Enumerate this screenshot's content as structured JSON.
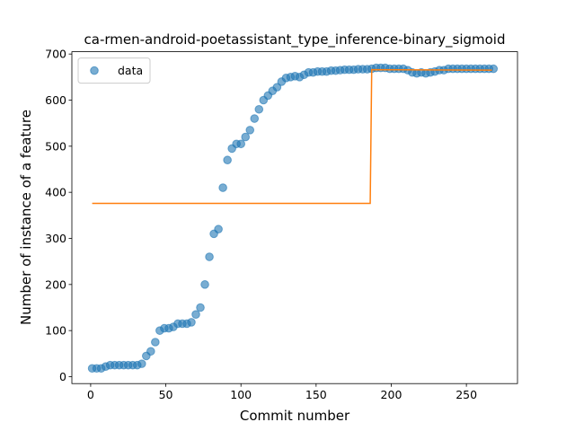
{
  "chart_data": {
    "type": "scatter",
    "title": "ca-rmen-android-poetassistant_type_inference-binary_sigmoid",
    "x_label": "Commit number",
    "y_label": "Number of instance of a feature",
    "xlim": [
      -12.5,
      284
    ],
    "ylim": [
      -15,
      705
    ],
    "xticks": [
      0,
      50,
      100,
      150,
      200,
      250
    ],
    "yticks": [
      0,
      100,
      200,
      300,
      400,
      500,
      600,
      700
    ],
    "legend": "upper left",
    "series": [
      {
        "name": "data",
        "color": "#1f77b4",
        "kind": "scatter",
        "x": [
          1,
          4,
          7,
          10,
          13,
          16,
          19,
          22,
          25,
          28,
          31,
          34,
          37,
          40,
          43,
          46,
          49,
          52,
          55,
          58,
          61,
          64,
          67,
          70,
          73,
          76,
          79,
          82,
          85,
          88,
          91,
          94,
          97,
          100,
          103,
          106,
          109,
          112,
          115,
          118,
          121,
          124,
          127,
          130,
          133,
          136,
          139,
          142,
          145,
          148,
          151,
          154,
          157,
          160,
          163,
          166,
          169,
          172,
          175,
          178,
          181,
          184,
          187,
          190,
          193,
          196,
          199,
          202,
          205,
          208,
          211,
          214,
          217,
          220,
          223,
          226,
          229,
          232,
          235,
          238,
          241,
          244,
          247,
          250,
          253,
          256,
          259,
          262,
          265,
          268
        ],
        "values": [
          18,
          18,
          18,
          22,
          25,
          25,
          25,
          25,
          25,
          25,
          25,
          28,
          45,
          55,
          75,
          100,
          105,
          105,
          108,
          115,
          115,
          115,
          118,
          135,
          150,
          200,
          260,
          310,
          320,
          410,
          470,
          495,
          505,
          505,
          520,
          535,
          560,
          580,
          600,
          610,
          620,
          628,
          640,
          648,
          650,
          652,
          650,
          655,
          660,
          660,
          662,
          662,
          662,
          664,
          664,
          665,
          666,
          666,
          666,
          667,
          667,
          667,
          668,
          670,
          670,
          670,
          668,
          668,
          668,
          668,
          665,
          660,
          658,
          660,
          658,
          660,
          662,
          665,
          665,
          668,
          668,
          668,
          668,
          668,
          668,
          668,
          668,
          668,
          668,
          668
        ]
      },
      {
        "color": "#ff7f0e",
        "kind": "line",
        "x": [
          1,
          186,
          187,
          267
        ],
        "values": [
          376,
          376,
          666,
          665
        ]
      }
    ]
  }
}
